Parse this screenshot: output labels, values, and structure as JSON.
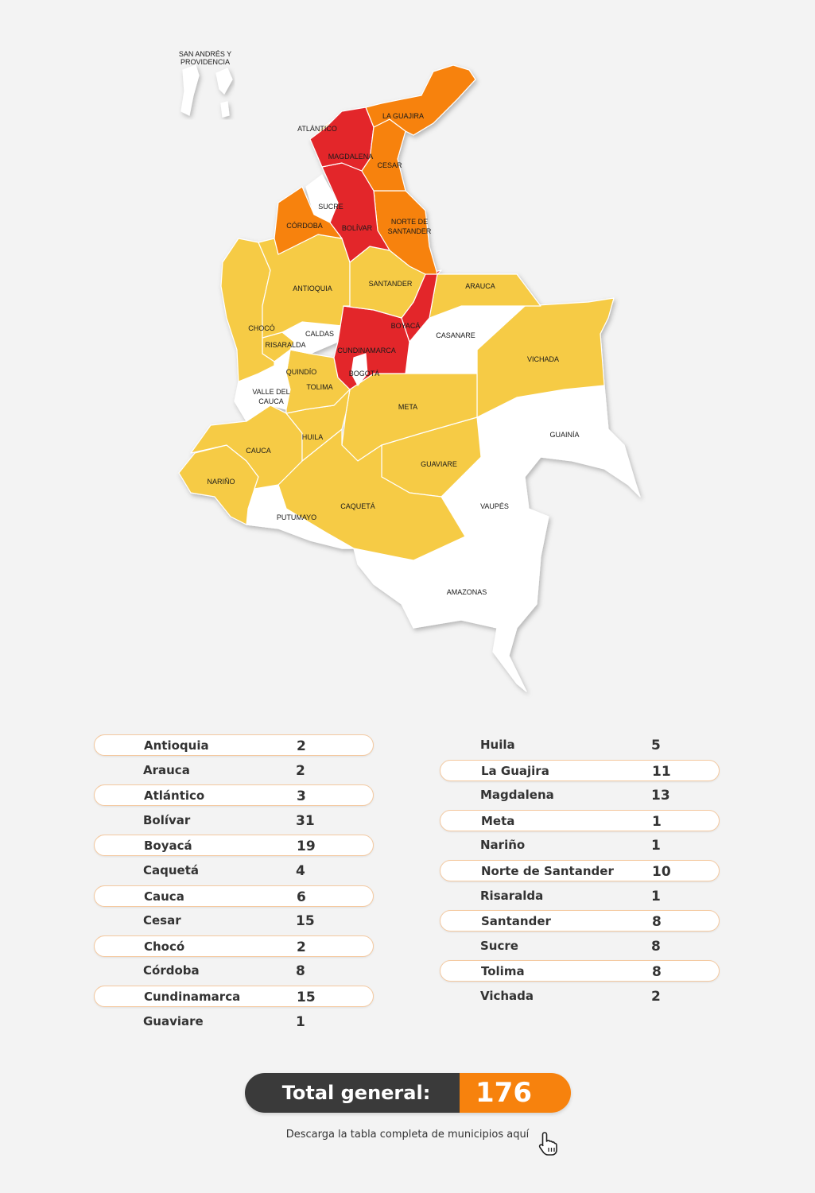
{
  "map": {
    "labels": {
      "san_andres": [
        "SAN ANDRÉS Y",
        "PROVIDENCIA"
      ],
      "atlantico": "ATLÁNTICO",
      "la_guajira": "LA GUAJIRA",
      "magdalena": "MAGDALENA",
      "cesar": "CESAR",
      "sucre": "SUCRE",
      "cordoba": "CÓRDOBA",
      "bolivar": "BOLÍVAR",
      "norte_santander": [
        "NORTE DE",
        "SANTANDER"
      ],
      "antioquia": "ANTIOQUIA",
      "santander": "SANTANDER",
      "arauca": "ARAUCA",
      "choco": "CHOCÓ",
      "caldas": "CALDAS",
      "boyaca": "BOYACÁ",
      "casanare": "CASANARE",
      "risaralda": "RISARALDA",
      "cundinamarca": "CUNDINAMARCA",
      "vichada": "VICHADA",
      "quindio": "QUINDÍO",
      "bogota": "BOGOTÁ",
      "valle": [
        "VALLE DEL",
        "CAUCA"
      ],
      "tolima": "TOLIMA",
      "meta": "META",
      "guainia": "GUAINÍA",
      "huila": "HUILA",
      "cauca": "CAUCA",
      "guaviare": "GUAVIARE",
      "narino": "NARIÑO",
      "caqueta": "CAQUETÁ",
      "vaupes": "VAUPÉS",
      "putumayo": "PUTUMAYO",
      "amazonas": "AMAZONAS"
    },
    "colors": {
      "red": "#e3262b",
      "orange": "#f7820d",
      "yellow": "#f6cb45",
      "white": "#ffffff"
    }
  },
  "table_left": [
    {
      "name": "Antioquia",
      "value": "2"
    },
    {
      "name": "Arauca",
      "value": "2"
    },
    {
      "name": "Atlántico",
      "value": "3"
    },
    {
      "name": "Bolívar",
      "value": "31"
    },
    {
      "name": "Boyacá",
      "value": "19"
    },
    {
      "name": "Caquetá",
      "value": "4"
    },
    {
      "name": "Cauca",
      "value": "6"
    },
    {
      "name": "Cesar",
      "value": "15"
    },
    {
      "name": "Chocó",
      "value": "2"
    },
    {
      "name": "Córdoba",
      "value": "8"
    },
    {
      "name": "Cundinamarca",
      "value": "15"
    },
    {
      "name": "Guaviare",
      "value": "1"
    }
  ],
  "table_right": [
    {
      "name": "Huila",
      "value": "5"
    },
    {
      "name": "La Guajira",
      "value": "11"
    },
    {
      "name": "Magdalena",
      "value": "13"
    },
    {
      "name": "Meta",
      "value": "1"
    },
    {
      "name": "Nariño",
      "value": "1"
    },
    {
      "name": "Norte de Santander",
      "value": "10"
    },
    {
      "name": "Risaralda",
      "value": "1"
    },
    {
      "name": "Santander",
      "value": "8"
    },
    {
      "name": "Sucre",
      "value": "8"
    },
    {
      "name": "Tolima",
      "value": "8"
    },
    {
      "name": "Vichada",
      "value": "2"
    }
  ],
  "total": {
    "label": "Total general:",
    "value": "176"
  },
  "download": {
    "text": "Descarga la tabla completa de municipios aquí"
  }
}
